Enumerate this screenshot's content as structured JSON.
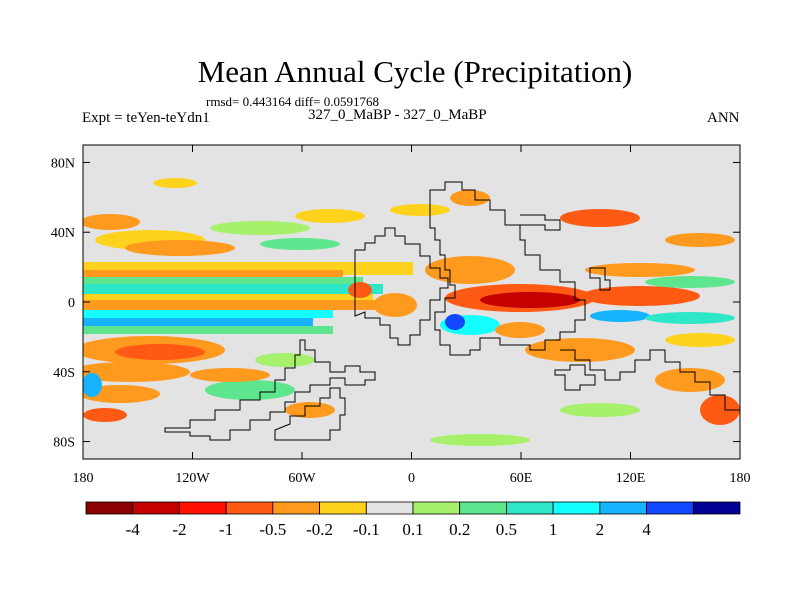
{
  "header": {
    "title": "Mean Annual Cycle (Precipitation)",
    "stats": "rmsd= 0.443164 diff= 0.0591768",
    "experiment": "Expt = teYen-teYdn1",
    "comparison": "327_0_MaBP - 327_0_MaBP",
    "season": "ANN"
  },
  "map": {
    "background_color": "#e3e3e3",
    "lat_ticks": [
      {
        "value": 80,
        "label": "80N"
      },
      {
        "value": 40,
        "label": "40N"
      },
      {
        "value": 0,
        "label": "0"
      },
      {
        "value": -40,
        "label": "40S"
      },
      {
        "value": -80,
        "label": "80S"
      }
    ],
    "lon_ticks": [
      {
        "value": -180,
        "label": "180"
      },
      {
        "value": -120,
        "label": "120W"
      },
      {
        "value": -60,
        "label": "60W"
      },
      {
        "value": 0,
        "label": "0"
      },
      {
        "value": 60,
        "label": "60E"
      },
      {
        "value": 120,
        "label": "120E"
      },
      {
        "value": 180,
        "label": "180"
      }
    ],
    "lat_range": [
      -90,
      90
    ],
    "lon_range": [
      -180,
      180
    ]
  },
  "colorbar": {
    "colors": [
      "#8b0000",
      "#c40000",
      "#ff1000",
      "#ff5a14",
      "#ff9a1e",
      "#ffd21e",
      "#e3e3e3",
      "#a6f06c",
      "#5ee68e",
      "#2ee6c8",
      "#14ffff",
      "#16b4ff",
      "#1248ff",
      "#000096"
    ],
    "labels": [
      "-4",
      "-2",
      "-1",
      "-0.5",
      "-0.2",
      "-0.1",
      "0.1",
      "0.2",
      "0.5",
      "1",
      "2",
      "4"
    ]
  }
}
